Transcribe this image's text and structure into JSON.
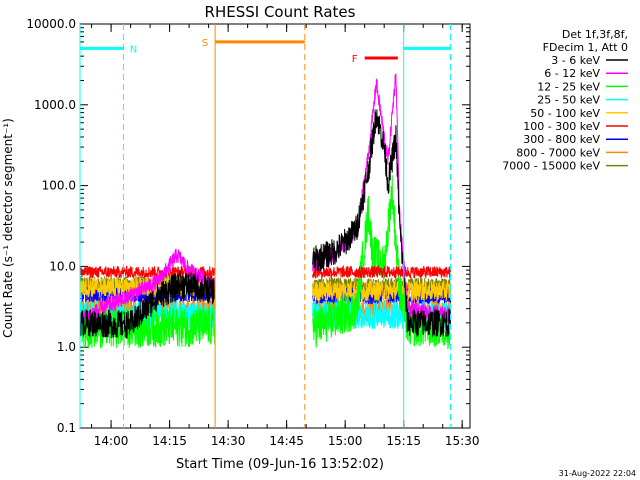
{
  "chart_data": {
    "type": "line",
    "title": "RHESSI Count Rates",
    "xlabel": "Start Time (09-Jun-16 13:52:02)",
    "ylabel": "Count Rate (s⁻¹ detector segment⁻¹)",
    "y_scale": "log",
    "ylim": [
      0.1,
      10000.0
    ],
    "xlim": [
      "13:52:02",
      "15:32:00"
    ],
    "x_unit": "time (UT)",
    "x_ticks": [
      "14:00",
      "14:15",
      "14:30",
      "14:45",
      "15:00",
      "15:15",
      "15:30"
    ],
    "y_ticks": [
      "0.1",
      "1.0",
      "10.0",
      "100.0",
      "1000.0",
      "10000.0"
    ],
    "legend_header": [
      "Det 1f,3f,8f,",
      "FDecim 1, Att 0"
    ],
    "legend_position": "top-right, outside plot",
    "timestamp": "31-Aug-2022 22:04",
    "data_gap": [
      "14:26:40",
      "14:51:40"
    ],
    "series": [
      {
        "name": "3 - 6 keV",
        "color": "#000000",
        "points": [
          [
            "13:52",
            "2.0"
          ],
          [
            "14:05",
            "1.9"
          ],
          [
            "14:12",
            "4.3"
          ],
          [
            "14:18",
            "6.0"
          ],
          [
            "14:26",
            "5.0"
          ],
          [
            "14:52",
            "12.0"
          ],
          [
            "14:57",
            "15.0"
          ],
          [
            "15:00",
            "20.0"
          ],
          [
            "15:03",
            "30.0"
          ],
          [
            "15:06",
            "160.0"
          ],
          [
            "15:08",
            "800.0"
          ],
          [
            "15:10",
            "300.0"
          ],
          [
            "15:11",
            "105.0"
          ],
          [
            "15:13",
            "400.0"
          ],
          [
            "15:14",
            "30.0"
          ],
          [
            "15:16",
            "2.0"
          ],
          [
            "15:27",
            "2.0"
          ]
        ]
      },
      {
        "name": "6 - 12 keV",
        "color": "#ff00ff",
        "points": [
          [
            "13:52",
            "2.2"
          ],
          [
            "14:12",
            "6.5"
          ],
          [
            "14:17",
            "14.0"
          ],
          [
            "14:20",
            "9.0"
          ],
          [
            "14:26",
            "6.0"
          ],
          [
            "14:52",
            "11.0"
          ],
          [
            "14:57",
            "14.0"
          ],
          [
            "15:00",
            "18.0"
          ],
          [
            "15:03",
            "28.0"
          ],
          [
            "15:06",
            "250.0"
          ],
          [
            "15:08",
            "1900.0"
          ],
          [
            "15:10",
            "400.0"
          ],
          [
            "15:11",
            "200.0"
          ],
          [
            "15:13",
            "2500.0"
          ],
          [
            "15:14",
            "40.0"
          ],
          [
            "15:16",
            "3.0"
          ],
          [
            "15:27",
            "2.5"
          ]
        ]
      },
      {
        "name": "12 - 25 keV",
        "color": "#00ff00",
        "points": [
          [
            "13:52",
            "1.7"
          ],
          [
            "14:26",
            "1.8"
          ],
          [
            "14:52",
            "1.7"
          ],
          [
            "15:03",
            "3.0"
          ],
          [
            "15:06",
            "50.0"
          ],
          [
            "15:07",
            "15.0"
          ],
          [
            "15:10",
            "10.0"
          ],
          [
            "15:12",
            "90.0"
          ],
          [
            "15:14",
            "5.0"
          ],
          [
            "15:16",
            "1.8"
          ],
          [
            "15:27",
            "1.7"
          ]
        ]
      },
      {
        "name": "25 - 50 keV",
        "color": "#00ffff",
        "points": [
          [
            "13:52",
            "2.5"
          ],
          [
            "14:26",
            "2.5"
          ],
          [
            "14:52",
            "2.5"
          ],
          [
            "15:27",
            "2.5"
          ]
        ]
      },
      {
        "name": "50 - 100 keV",
        "color": "#ffcc00",
        "points": [
          [
            "13:52",
            "5.5"
          ],
          [
            "14:26",
            "5.5"
          ],
          [
            "14:52",
            "5.0"
          ],
          [
            "15:27",
            "5.0"
          ]
        ]
      },
      {
        "name": "100 - 300 keV",
        "color": "#ff0000",
        "points": [
          [
            "13:52",
            "8.5"
          ],
          [
            "14:26",
            "8.5"
          ],
          [
            "14:52",
            "8.5"
          ],
          [
            "15:27",
            "8.5"
          ]
        ]
      },
      {
        "name": "300 - 800 keV",
        "color": "#0000ff",
        "points": [
          [
            "13:52",
            "4.5"
          ],
          [
            "14:26",
            "4.5"
          ],
          [
            "14:52",
            "4.3"
          ],
          [
            "15:27",
            "4.3"
          ]
        ]
      },
      {
        "name": "800 - 7000 keV",
        "color": "#ff8800",
        "points": [
          [
            "13:52",
            "3.0"
          ],
          [
            "14:26",
            "3.0"
          ],
          [
            "14:52",
            "2.9"
          ],
          [
            "15:27",
            "2.9"
          ]
        ]
      },
      {
        "name": "7000 - 15000 keV",
        "color": "#808000",
        "points": [
          [
            "13:52",
            "6.0"
          ],
          [
            "14:26",
            "6.0"
          ],
          [
            "14:52",
            "5.8"
          ],
          [
            "15:27",
            "5.8"
          ]
        ]
      }
    ],
    "annotations": [
      {
        "label": "N",
        "color": "#00ffff",
        "bar": [
          "13:52:02",
          "14:03:10"
        ],
        "level": "5000",
        "lines": [
          {
            "t": "13:52:02",
            "style": "solid"
          },
          {
            "t": "14:03:10",
            "style": "dashed"
          }
        ]
      },
      {
        "label": "S",
        "color": "#ff8800",
        "bar": [
          "14:26:40",
          "14:49:40"
        ],
        "level": "6000",
        "lines": [
          {
            "t": "14:26:40",
            "style": "solid"
          },
          {
            "t": "14:49:40",
            "style": "dashed"
          }
        ]
      },
      {
        "label": "F",
        "color": "#ff0000",
        "bar": [
          "15:05:00",
          "15:13:30"
        ],
        "level": "3800",
        "lines": []
      },
      {
        "label": "",
        "color": "#00ffff",
        "bar": [
          "15:15:00",
          "15:27:00"
        ],
        "level": "5000",
        "lines": [
          {
            "t": "15:15:00",
            "style": "solid"
          },
          {
            "t": "15:27:00",
            "style": "dashed"
          }
        ]
      }
    ]
  }
}
